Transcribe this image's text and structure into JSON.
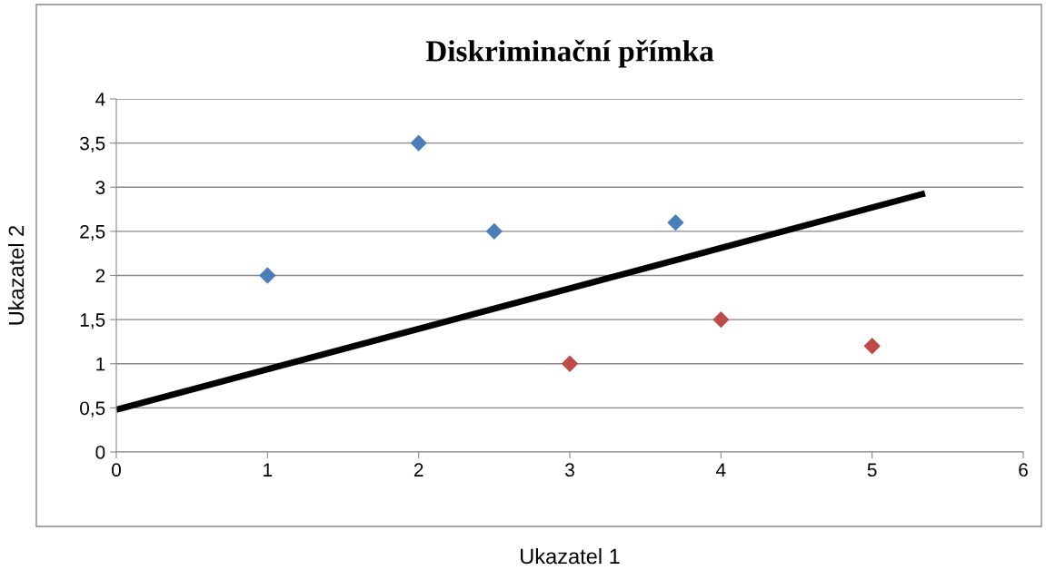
{
  "chart_data": {
    "type": "scatter",
    "title": "Diskriminační přímka",
    "xlabel": "Ukazatel 1",
    "ylabel": "Ukazatel 2",
    "series": [
      {
        "color": "#4a7ebb",
        "x": [
          1,
          2,
          2.5,
          3.7
        ],
        "values": [
          2,
          3.5,
          2.5,
          2.6
        ]
      },
      {
        "color": "#be4b48",
        "x": [
          3,
          4,
          5
        ],
        "values": [
          1,
          1.5,
          1.2
        ]
      },
      {
        "type": "line",
        "color": "#000000",
        "x": [
          0,
          5.35
        ],
        "values": [
          0.48,
          2.93
        ],
        "marker": "none"
      }
    ],
    "marker": "diamond",
    "line_style": "solid",
    "grid": "y",
    "legend": false,
    "xlim": [
      0,
      6
    ],
    "xticks": [
      0,
      1,
      2,
      3,
      4,
      5,
      6
    ],
    "ylim": [
      0,
      4
    ],
    "yticks": [
      0,
      {
        "value": 0.5,
        "label": "0,5"
      },
      1,
      {
        "value": 1.5,
        "label": "1,5"
      },
      2,
      {
        "value": 2.5,
        "label": "2,5"
      },
      3,
      {
        "value": 3.5,
        "label": "3,5"
      },
      4
    ]
  }
}
